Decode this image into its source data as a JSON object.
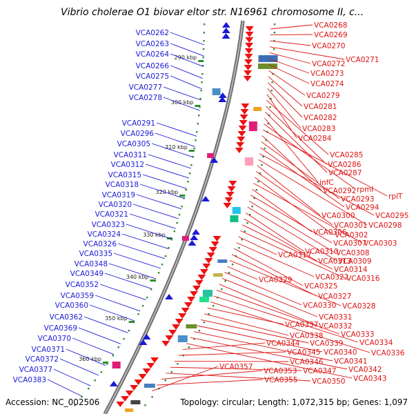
{
  "title": "Vibrio cholerae O1 biovar eltor str. N16961 chromosome II, c...",
  "footer": {
    "accession": "Accession: NC_002506",
    "topology": "Topology: circular; Length: 1,072,315 bp; Genes: 1,097"
  },
  "colors": {
    "backbone": "#8a8a8a",
    "left_labels": "#1a1ad6",
    "right_labels": "#dd1111",
    "forward_feature": "#1a1ad6",
    "reverse_feature": "#ee1111",
    "ticks": "#2e8b2e"
  },
  "kbp_ticks": [
    "290 kbp",
    "300 kbp",
    "310 kbp",
    "320 kbp",
    "330 kbp",
    "340 kbp",
    "350 kbp",
    "360 kbp"
  ],
  "left_genes": [
    "VCA0262",
    "VCA0263",
    "VCA0264",
    "VCA0266",
    "VCA0275",
    "VCA0277",
    "VCA0278",
    "VCA0291",
    "VCA0296",
    "VCA0305",
    "VCA0311",
    "VCA0312",
    "VCA0315",
    "VCA0318",
    "VCA0319",
    "VCA0320",
    "VCA0321",
    "VCA0323",
    "VCA0324",
    "VCA0326",
    "VCA0335",
    "VCA0348",
    "VCA0349",
    "VCA0352",
    "VCA0359",
    "VCA0360",
    "VCA0362",
    "VCA0369",
    "VCA0370",
    "VCA0371",
    "VCA0372",
    "VCA0377",
    "VCA0383"
  ],
  "right_genes": [
    "VCA0268",
    "VCA0269",
    "VCA0270",
    "VCA0271",
    "VCA0272",
    "VCA0273",
    "VCA0274",
    "VCA0279",
    "VCA0281",
    "VCA0282",
    "VCA0283",
    "VCA0284",
    "VCA0285",
    "VCA0286",
    "VCA0287",
    "infC",
    "rpmI",
    "rplT",
    "VCA0292",
    "VCA0293",
    "VCA0294",
    "VCA0295",
    "VCA0298",
    "VCA0300",
    "VCA0301",
    "VCA0302",
    "VCA0303",
    "VCA0306",
    "VCA0307",
    "VCA0308",
    "VCA0309",
    "VCA0310",
    "VCA0313",
    "VCA0314",
    "VCA0316",
    "VCA0317",
    "VCA0322",
    "VCA0325",
    "VCA0327",
    "VCA0328",
    "VCA0329",
    "VCA0330",
    "VCA0331",
    "VCA0332",
    "VCA0333",
    "VCA0334",
    "VCA0336",
    "VCA0337",
    "VCA0338",
    "VCA0339",
    "VCA0340",
    "VCA0341",
    "VCA0342",
    "VCA0343",
    "VCA0344",
    "VCA0345",
    "VCA0346",
    "VCA0347",
    "VCA0350",
    "VCA0353",
    "VCA0355",
    "VCA0357"
  ]
}
